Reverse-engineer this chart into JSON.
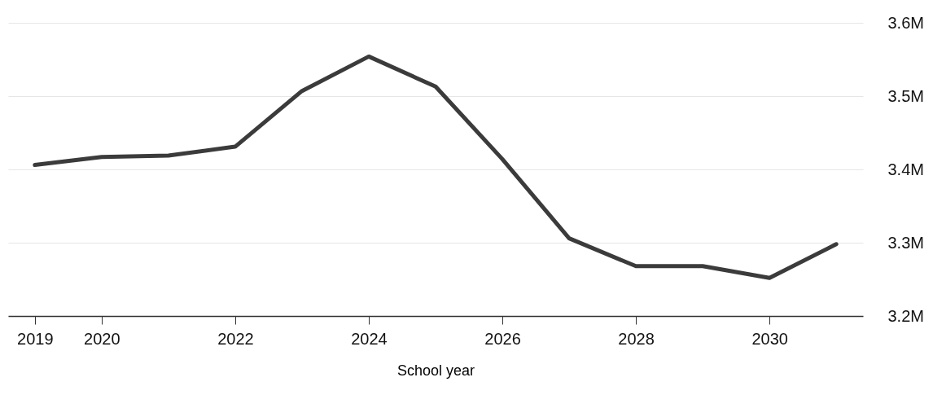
{
  "chart_data": {
    "type": "line",
    "xlabel": "School year",
    "x": [
      2019,
      2020,
      2021,
      2022,
      2023,
      2024,
      2025,
      2026,
      2027,
      2028,
      2029,
      2030,
      2031
    ],
    "series": [
      {
        "color": "#3b3b3b",
        "values": [
          3.406,
          3.417,
          3.419,
          3.431,
          3.507,
          3.554,
          3.513,
          3.414,
          3.306,
          3.268,
          3.268,
          3.252,
          3.298
        ]
      }
    ],
    "xlim": [
      2018.6,
      2031.4
    ],
    "xticks": [
      2019,
      2020,
      2022,
      2024,
      2026,
      2028,
      2030
    ],
    "ylim": [
      3.2,
      3.6
    ],
    "yticks": [
      {
        "value": 3.2,
        "label": "3.2M"
      },
      {
        "value": 3.3,
        "label": "3.3M"
      },
      {
        "value": 3.4,
        "label": "3.4M"
      },
      {
        "value": 3.5,
        "label": "3.5M"
      },
      {
        "value": 3.6,
        "label": "3.6M"
      }
    ],
    "grid": "y",
    "marker": "none",
    "line_style": "solid"
  }
}
